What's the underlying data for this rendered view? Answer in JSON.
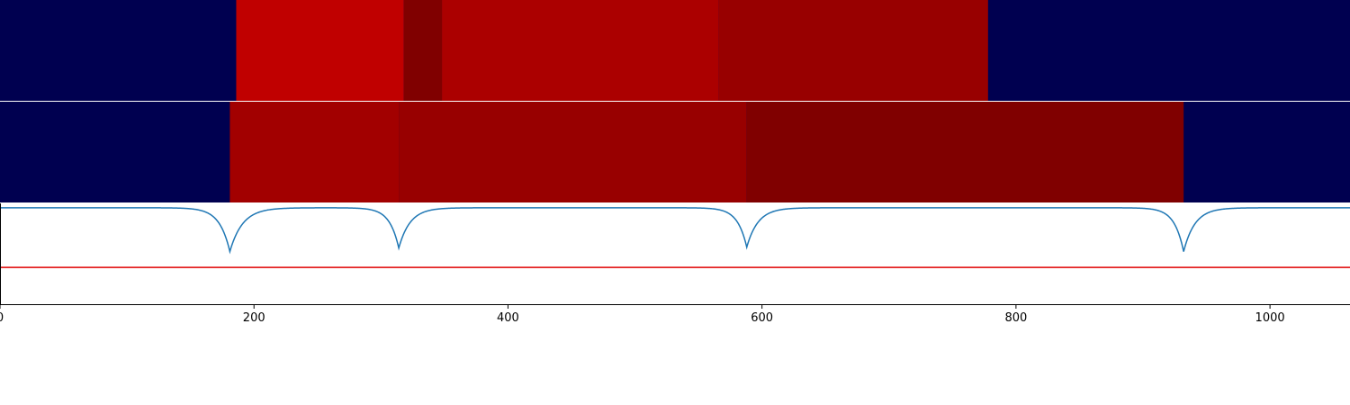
{
  "chart_data": [
    {
      "type": "heatmap",
      "background": "#000050",
      "xlim": [
        0,
        1063
      ],
      "segments": [
        {
          "x0": 186,
          "x1": 318,
          "color": "#c00000"
        },
        {
          "x0": 318,
          "x1": 348,
          "color": "#800000"
        },
        {
          "x0": 348,
          "x1": 566,
          "color": "#ab0000"
        },
        {
          "x0": 566,
          "x1": 778,
          "color": "#980000"
        }
      ]
    },
    {
      "type": "heatmap",
      "background": "#000050",
      "xlim": [
        0,
        1063
      ],
      "segments": [
        {
          "x0": 181,
          "x1": 314,
          "color": "#a20000"
        },
        {
          "x0": 314,
          "x1": 588,
          "color": "#980000"
        },
        {
          "x0": 588,
          "x1": 932,
          "color": "#800000"
        }
      ]
    },
    {
      "type": "line",
      "xlim": [
        0,
        1063
      ],
      "ylim": [
        -1.1,
        0.05
      ],
      "xticks": [
        0,
        200,
        400,
        600,
        800,
        1000
      ],
      "grid": false,
      "threshold": {
        "y": -0.68,
        "color": "#e00000"
      },
      "series": [
        {
          "color": "#1f77b4",
          "baseline": 0,
          "dips": [
            {
              "center": 181,
              "depth": -0.5,
              "width": 9
            },
            {
              "center": 314,
              "depth": -0.46,
              "width": 8
            },
            {
              "center": 588,
              "depth": -0.45,
              "width": 8
            },
            {
              "center": 932,
              "depth": -0.5,
              "width": 8
            }
          ]
        }
      ]
    }
  ]
}
